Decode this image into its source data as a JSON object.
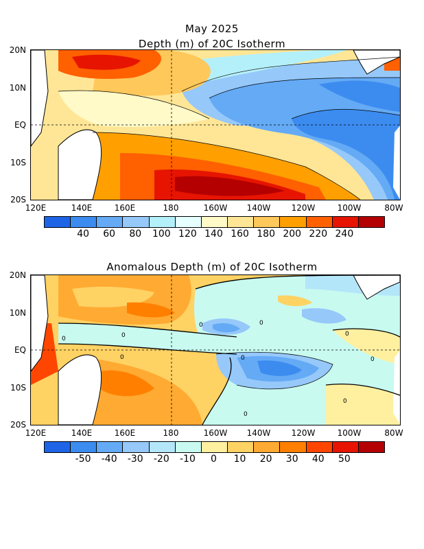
{
  "top_panel": {
    "title_line1": "May 2025",
    "title_line2": "Depth (m) of 20C Isotherm",
    "lat_labels": [
      "20N",
      "10N",
      "EQ",
      "10S",
      "20S"
    ],
    "lon_labels": [
      "120E",
      "140E",
      "160E",
      "180",
      "160W",
      "140W",
      "120W",
      "100W",
      "80W"
    ],
    "colorbar_colors": [
      "#1e64e6",
      "#3c8cf0",
      "#64aaf5",
      "#96c8fa",
      "#b4f0fa",
      "#e6ffff",
      "#fffac8",
      "#ffe696",
      "#ffc85a",
      "#ffa000",
      "#ff6000",
      "#e61400",
      "#b40000"
    ],
    "colorbar_labels": [
      "40",
      "60",
      "80",
      "100",
      "120",
      "140",
      "160",
      "180",
      "200",
      "220",
      "240"
    ]
  },
  "bottom_panel": {
    "title": "Anomalous Depth (m) of 20C Isotherm",
    "lat_labels": [
      "20N",
      "10N",
      "EQ",
      "10S",
      "20S"
    ],
    "lon_labels": [
      "120E",
      "140E",
      "160E",
      "180",
      "160W",
      "140W",
      "120W",
      "100W",
      "80W"
    ],
    "colorbar_colors": [
      "#1e64e6",
      "#3c8cf0",
      "#64aaf5",
      "#96c8fa",
      "#b4e6fa",
      "#c8faf0",
      "#fff0a0",
      "#ffd264",
      "#ffaa32",
      "#ff8000",
      "#ff4600",
      "#e61400",
      "#b40000"
    ],
    "colorbar_labels": [
      "-50",
      "-40",
      "-30",
      "-20",
      "-10",
      "0",
      "10",
      "20",
      "30",
      "40",
      "50"
    ],
    "contour_labels": [
      "0",
      "0",
      "0",
      "0",
      "0",
      "0",
      "0",
      "0",
      "0",
      "0"
    ]
  }
}
